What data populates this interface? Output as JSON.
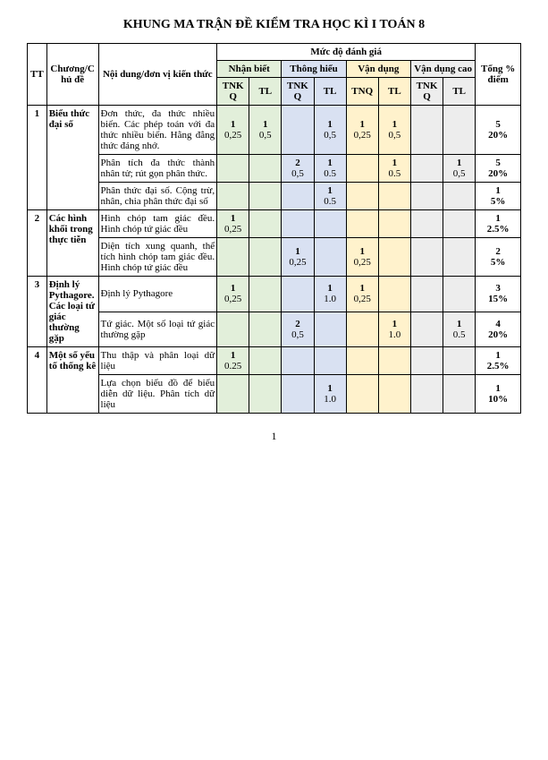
{
  "title": "KHUNG MA TRẬN ĐỀ KIỂM TRA HỌC KÌ I TOÁN 8",
  "headers": {
    "tt": "TT",
    "chude": "Chương/Chủ đề",
    "noidung": "Nội dung/đơn vị kiến thức",
    "mucdo": "Mức độ đánh giá",
    "tong": "Tổng % điểm",
    "nb": "Nhận biết",
    "th": "Thông hiểu",
    "vd": "Vận dụng",
    "vdc": "Vận dụng cao",
    "tnkq": "TNKQ",
    "tnq": "TNQ",
    "tl": "TL"
  },
  "colors": {
    "nb": "#e2efda",
    "th": "#d9e1f2",
    "vd": "#fff2cc",
    "vdc": "#ededed"
  },
  "rows": [
    {
      "tt": "1",
      "chude": "Biểu thức đại số",
      "items": [
        {
          "noidung": "Đơn thức, đa thức nhiều biến. Các phép toán với đa thức nhiều biến. Hằng đẳng thức đáng nhớ.",
          "nb_tn": {
            "n": "1",
            "v": "0,25"
          },
          "nb_tl": {
            "n": "1",
            "v": "0,5"
          },
          "th_tn": null,
          "th_tl": {
            "n": "1",
            "v": "0,5"
          },
          "vd_tn": {
            "n": "1",
            "v": "0,25"
          },
          "vd_tl": {
            "n": "1",
            "v": "0,5"
          },
          "vdc_tn": null,
          "vdc_tl": null,
          "tong": {
            "n": "5",
            "v": "20%"
          }
        },
        {
          "noidung": "Phân tích đa thức thành nhân tử; rút gọn phân thức.",
          "nb_tn": null,
          "nb_tl": null,
          "th_tn": {
            "n": "2",
            "v": "0,5"
          },
          "th_tl": {
            "n": "1",
            "v": "0.5"
          },
          "vd_tn": null,
          "vd_tl": {
            "n": "1",
            "v": "0.5"
          },
          "vdc_tn": null,
          "vdc_tl": {
            "n": "1",
            "v": "0,5"
          },
          "tong": {
            "n": "5",
            "v": "20%"
          }
        },
        {
          "noidung": "Phân thức đại số. Cộng trừ, nhân, chia phân thức đại số",
          "nb_tn": null,
          "nb_tl": null,
          "th_tn": null,
          "th_tl": {
            "n": "1",
            "v": "0.5"
          },
          "vd_tn": null,
          "vd_tl": null,
          "vdc_tn": null,
          "vdc_tl": null,
          "tong": {
            "n": "1",
            "v": "5%"
          }
        }
      ]
    },
    {
      "tt": "2",
      "chude": "Các hình khối trong thực tiễn",
      "items": [
        {
          "noidung": "Hình chóp tam giác đều. Hình chóp tứ giác đều",
          "nb_tn": {
            "n": "1",
            "v": "0,25"
          },
          "nb_tl": null,
          "th_tn": null,
          "th_tl": null,
          "vd_tn": null,
          "vd_tl": null,
          "vdc_tn": null,
          "vdc_tl": null,
          "tong": {
            "n": "1",
            "v": "2.5%"
          }
        },
        {
          "noidung": "Diện tích xung quanh, thể tích hình chóp tam giác đều. Hình chóp tứ giác đều",
          "nb_tn": null,
          "nb_tl": null,
          "th_tn": {
            "n": "1",
            "v": "0,25"
          },
          "th_tl": null,
          "vd_tn": {
            "n": "1",
            "v": "0,25"
          },
          "vd_tl": null,
          "vdc_tn": null,
          "vdc_tl": null,
          "tong": {
            "n": "2",
            "v": "5%"
          }
        }
      ]
    },
    {
      "tt": "3",
      "chude": "Định lý Pythagore. Các loại tứ giác thường gặp",
      "items": [
        {
          "noidung": "Định lý Pythagore",
          "nb_tn": {
            "n": "1",
            "v": "0,25"
          },
          "nb_tl": null,
          "th_tn": null,
          "th_tl": {
            "n": "1",
            "v": "1.0"
          },
          "vd_tn": {
            "n": "1",
            "v": "0,25"
          },
          "vd_tl": null,
          "vdc_tn": null,
          "vdc_tl": null,
          "tong": {
            "n": "3",
            "v": "15%"
          }
        },
        {
          "noidung": "Tứ giác. Một số loại tứ giác thường gặp",
          "nb_tn": null,
          "nb_tl": null,
          "th_tn": {
            "n": "2",
            "v": "0,5"
          },
          "th_tl": null,
          "vd_tn": null,
          "vd_tl": {
            "n": "1",
            "v": "1.0"
          },
          "vdc_tn": null,
          "vdc_tl": {
            "n": "1",
            "v": "0.5"
          },
          "tong": {
            "n": "4",
            "v": "20%"
          }
        }
      ]
    },
    {
      "tt": "4",
      "chude": "Một số yếu tố thống kê",
      "items": [
        {
          "noidung": "Thu thập và phân loại dữ liệu",
          "nb_tn": {
            "n": "1",
            "v": "0.25"
          },
          "nb_tl": null,
          "th_tn": null,
          "th_tl": null,
          "vd_tn": null,
          "vd_tl": null,
          "vdc_tn": null,
          "vdc_tl": null,
          "tong": {
            "n": "1",
            "v": "2.5%"
          }
        },
        {
          "noidung": "Lựa chọn biểu đồ để biểu diễn dữ liệu. Phân tích dữ liệu",
          "nb_tn": null,
          "nb_tl": null,
          "th_tn": null,
          "th_tl": {
            "n": "1",
            "v": "1.0"
          },
          "vd_tn": null,
          "vd_tl": null,
          "vdc_tn": null,
          "vdc_tl": null,
          "tong": {
            "n": "1",
            "v": "10%"
          }
        }
      ]
    }
  ],
  "pagenum": "1"
}
